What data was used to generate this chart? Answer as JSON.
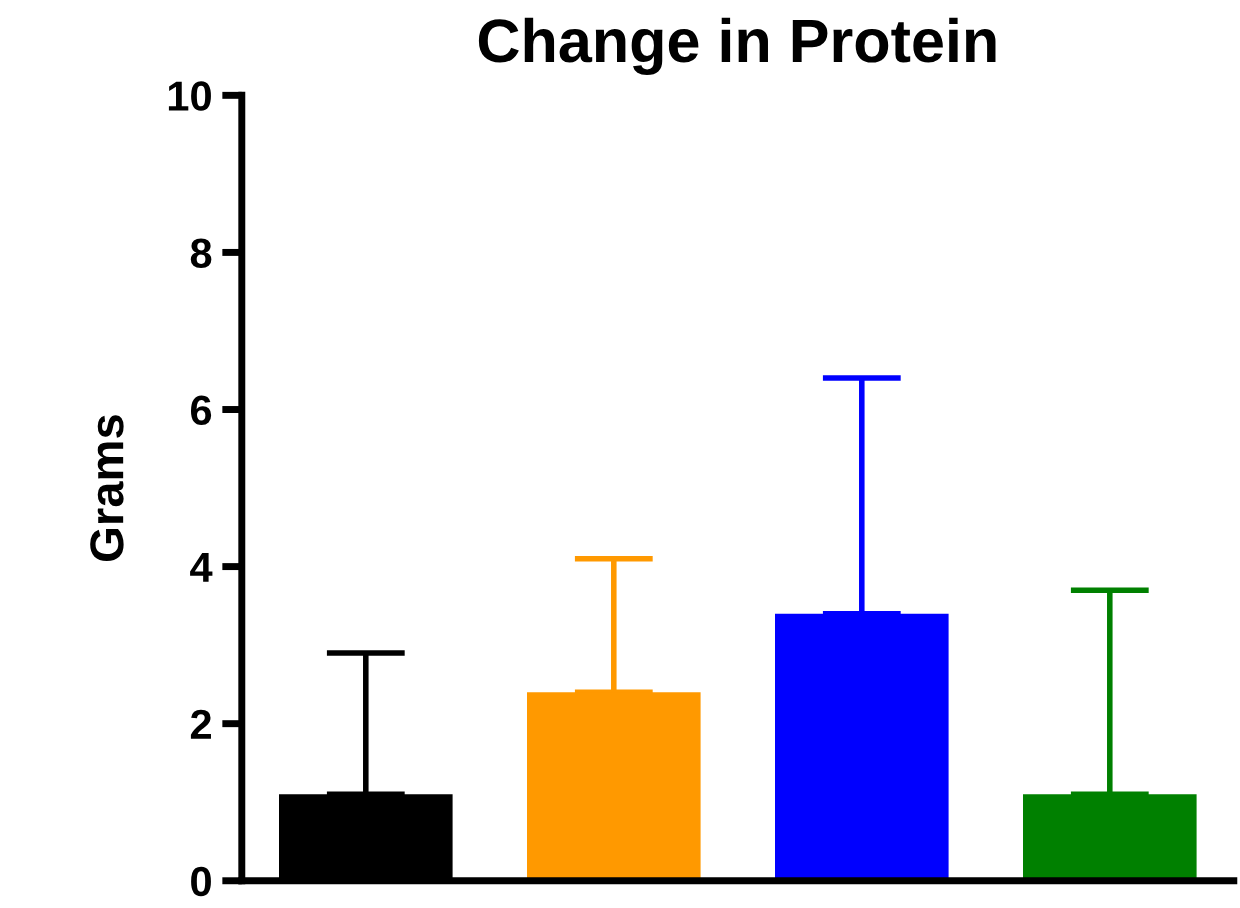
{
  "chart_data": {
    "type": "bar",
    "title": "Change in Protein",
    "ylabel": "Grams",
    "categories": [
      null,
      null,
      null,
      null
    ],
    "values": [
      1.1,
      2.4,
      3.4,
      1.1
    ],
    "colors": [
      "#000000",
      "#ff9900",
      "#0000ff",
      "#008000"
    ],
    "errors": [
      [
        1.1,
        2.9
      ],
      [
        2.4,
        4.1
      ],
      [
        3.4,
        6.4
      ],
      [
        1.1,
        3.7
      ]
    ],
    "ylim": [
      0,
      10
    ],
    "yticks": [
      0,
      2,
      4,
      6,
      8,
      10
    ],
    "grid": false,
    "legend": false
  }
}
